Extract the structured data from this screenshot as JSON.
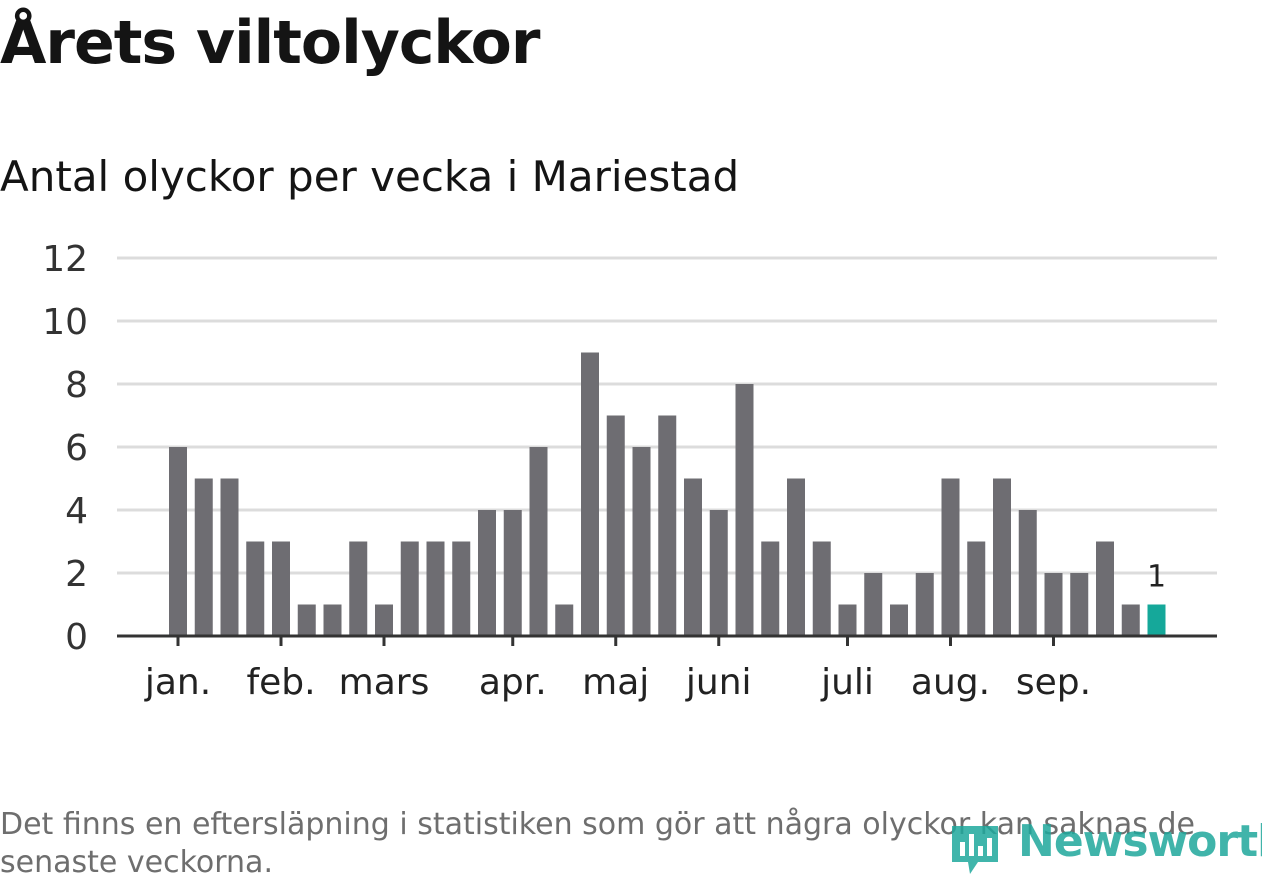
{
  "title": "Årets viltolyckor",
  "chart_data": {
    "type": "bar",
    "title": "Antal olyckor per vecka i Mariestad",
    "xlabel": "",
    "ylabel": "",
    "ylim": [
      0,
      12
    ],
    "yticks": [
      0,
      2,
      4,
      6,
      8,
      10,
      12
    ],
    "values": [
      6,
      5,
      5,
      3,
      3,
      1,
      1,
      3,
      1,
      3,
      3,
      3,
      4,
      4,
      6,
      1,
      9,
      7,
      6,
      7,
      5,
      4,
      8,
      3,
      5,
      3,
      1,
      2,
      1,
      2,
      5,
      3,
      5,
      4,
      2,
      2,
      3,
      1,
      1
    ],
    "month_labels": [
      {
        "label": "jan.",
        "week_index": 0
      },
      {
        "label": "feb.",
        "week_index": 4
      },
      {
        "label": "mars",
        "week_index": 8
      },
      {
        "label": "apr.",
        "week_index": 13
      },
      {
        "label": "maj",
        "week_index": 17
      },
      {
        "label": "juni",
        "week_index": 21
      },
      {
        "label": "juli",
        "week_index": 26
      },
      {
        "label": "aug.",
        "week_index": 30
      },
      {
        "label": "sep.",
        "week_index": 34
      }
    ],
    "highlight_index": 38,
    "highlight_label": "1",
    "colors": {
      "bar": "#6e6d72",
      "highlight": "#15a89a",
      "grid": "#dcdcdc",
      "axis": "#333333"
    }
  },
  "footnote": "Det finns en eftersläpning i statistiken som gör att några olyckor kan saknas de senaste veckorna.",
  "logo": {
    "text": "Newsworthy",
    "icon": "newsworthy-logo-icon"
  }
}
